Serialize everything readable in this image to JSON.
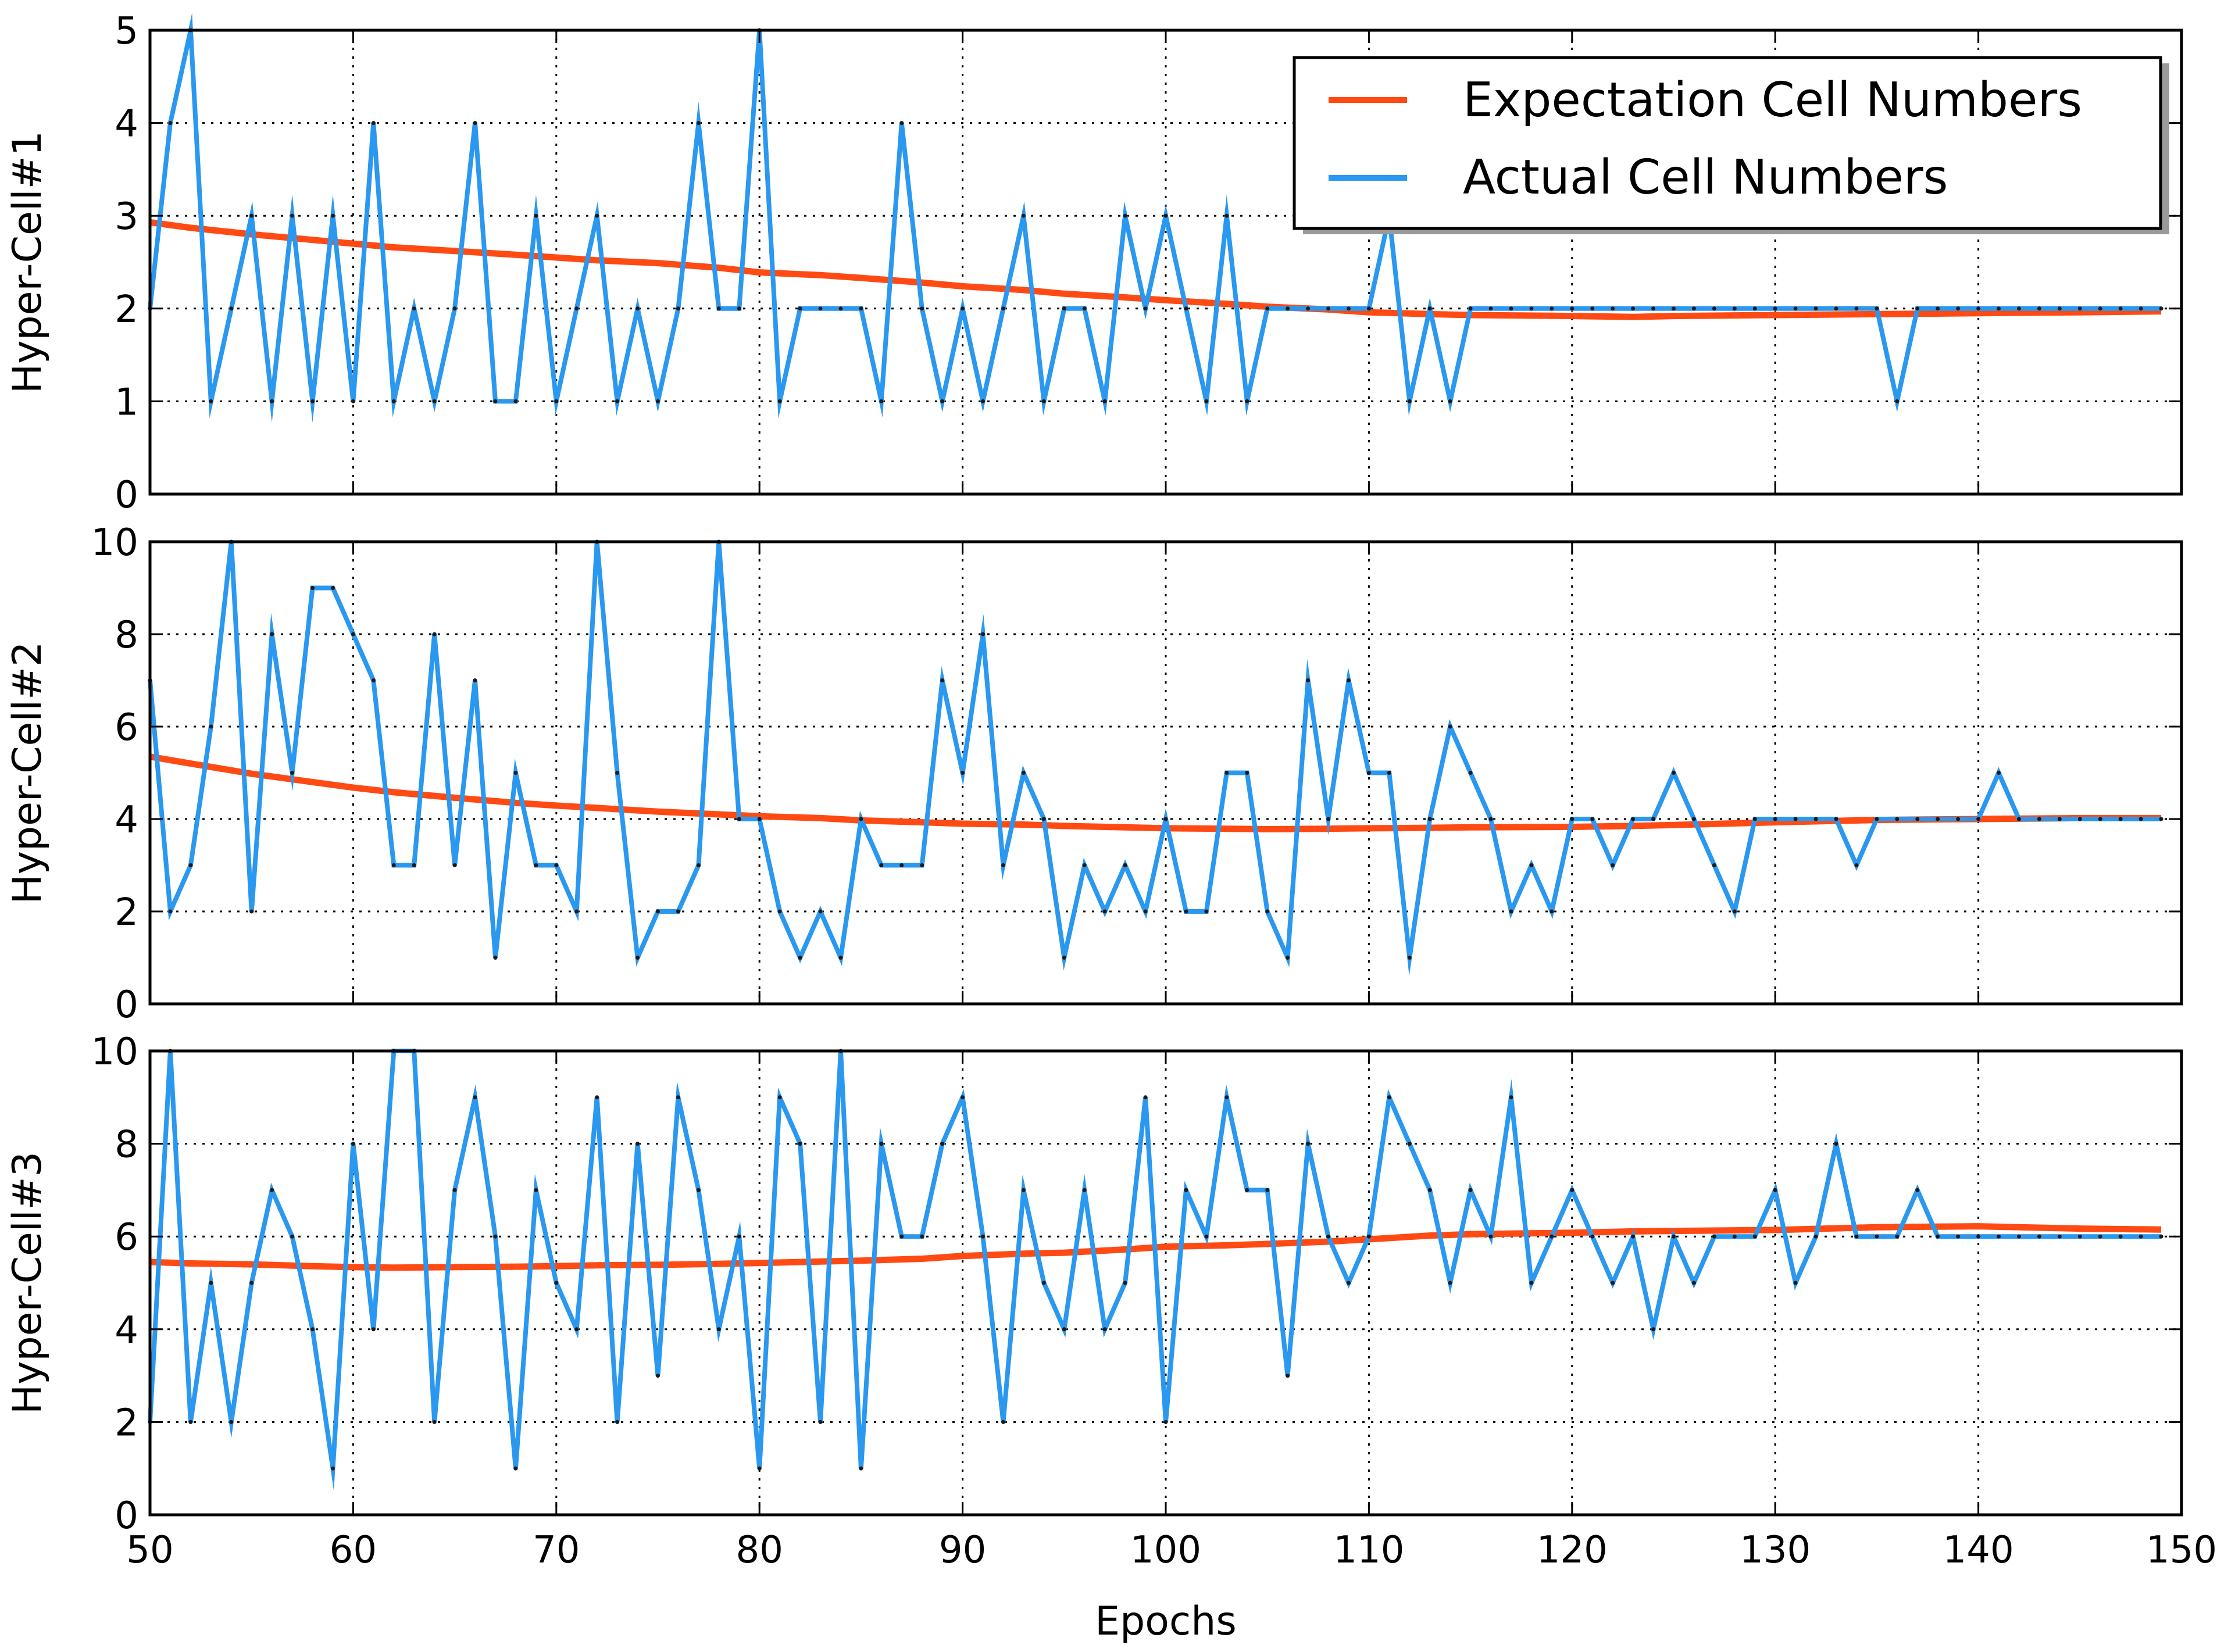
{
  "chart_data": {
    "type": "line",
    "xlabel": "Epochs",
    "xlim": [
      50,
      150
    ],
    "xticks": [
      50,
      60,
      70,
      80,
      90,
      100,
      110,
      120,
      130,
      140,
      150
    ],
    "grid": true,
    "legend": {
      "placement": "top-right of first panel",
      "entries": [
        "Expectation Cell Numbers",
        "Actual Cell Numbers"
      ]
    },
    "colors": {
      "expectation": "#ff4a13",
      "actual": "#2b98f0"
    },
    "panels": [
      {
        "ylabel": "Hyper-Cell#1",
        "ylim": [
          0,
          5
        ],
        "yticks": [
          0,
          1,
          2,
          3,
          4,
          5
        ],
        "series": [
          {
            "name": "Expectation Cell Numbers",
            "x": [
              50,
              52,
              55,
              58,
              60,
              62,
              65,
              68,
              70,
              72,
              75,
              78,
              80,
              83,
              85,
              88,
              90,
              93,
              95,
              98,
              100,
              103,
              105,
              108,
              110,
              113,
              115,
              120,
              123,
              125,
              130,
              135,
              140,
              145,
              149
            ],
            "y": [
              2.93,
              2.87,
              2.8,
              2.74,
              2.7,
              2.66,
              2.62,
              2.58,
              2.55,
              2.52,
              2.49,
              2.44,
              2.39,
              2.36,
              2.33,
              2.28,
              2.24,
              2.2,
              2.16,
              2.12,
              2.09,
              2.05,
              2.02,
              1.99,
              1.96,
              1.94,
              1.93,
              1.92,
              1.91,
              1.92,
              1.93,
              1.94,
              1.95,
              1.96,
              1.97
            ]
          },
          {
            "name": "Actual Cell Numbers",
            "x": [
              50,
              51,
              52,
              53,
              54,
              55,
              56,
              57,
              58,
              59,
              60,
              61,
              62,
              63,
              64,
              65,
              66,
              67,
              68,
              69,
              70,
              71,
              72,
              73,
              74,
              75,
              76,
              77,
              78,
              79,
              80,
              81,
              82,
              83,
              84,
              85,
              86,
              87,
              88,
              89,
              90,
              91,
              92,
              93,
              94,
              95,
              96,
              97,
              98,
              99,
              100,
              101,
              102,
              103,
              104,
              105,
              106,
              107,
              108,
              109,
              110,
              111,
              112,
              113,
              114,
              115,
              116,
              117,
              118,
              119,
              120,
              121,
              122,
              123,
              124,
              125,
              126,
              127,
              128,
              129,
              130,
              131,
              132,
              133,
              134,
              135,
              136,
              137,
              138,
              139,
              140,
              141,
              142,
              143,
              144,
              145,
              146,
              147,
              148,
              149
            ],
            "y": [
              2,
              4,
              5,
              1,
              2,
              3,
              1,
              3,
              1,
              3,
              1,
              4,
              1,
              2,
              1,
              2,
              4,
              1,
              1,
              3,
              1,
              2,
              3,
              1,
              2,
              1,
              2,
              4,
              2,
              2,
              5,
              1,
              2,
              2,
              2,
              2,
              1,
              4,
              2,
              1,
              2,
              1,
              2,
              3,
              1,
              2,
              2,
              1,
              3,
              2,
              3,
              2,
              1,
              3,
              1,
              2,
              2,
              2,
              2,
              2,
              2,
              3,
              1,
              2,
              1,
              2,
              2,
              2,
              2,
              2,
              2,
              2,
              2,
              2,
              2,
              2,
              2,
              2,
              2,
              2,
              2,
              2,
              2,
              2,
              2,
              2,
              1,
              2,
              2,
              2,
              2,
              2,
              2,
              2,
              2,
              2,
              2,
              2,
              2,
              2
            ]
          }
        ]
      },
      {
        "ylabel": "Hyper-Cell#2",
        "ylim": [
          0,
          10
        ],
        "yticks": [
          0,
          2,
          4,
          6,
          8,
          10
        ],
        "series": [
          {
            "name": "Expectation Cell Numbers",
            "x": [
              50,
              52,
              55,
              58,
              60,
              62,
              65,
              68,
              70,
              72,
              75,
              78,
              80,
              83,
              85,
              88,
              90,
              93,
              95,
              98,
              100,
              103,
              105,
              108,
              110,
              113,
              115,
              120,
              123,
              125,
              130,
              135,
              140,
              145,
              149
            ],
            "y": [
              5.35,
              5.2,
              4.98,
              4.8,
              4.68,
              4.58,
              4.46,
              4.35,
              4.29,
              4.24,
              4.16,
              4.1,
              4.06,
              4.02,
              3.97,
              3.93,
              3.9,
              3.88,
              3.85,
              3.82,
              3.8,
              3.79,
              3.78,
              3.79,
              3.8,
              3.81,
              3.82,
              3.83,
              3.85,
              3.87,
              3.93,
              3.98,
              4.0,
              4.02,
              4.02
            ]
          },
          {
            "name": "Actual Cell Numbers",
            "x": [
              50,
              51,
              52,
              53,
              54,
              55,
              56,
              57,
              58,
              59,
              60,
              61,
              62,
              63,
              64,
              65,
              66,
              67,
              68,
              69,
              70,
              71,
              72,
              73,
              74,
              75,
              76,
              77,
              78,
              79,
              80,
              81,
              82,
              83,
              84,
              85,
              86,
              87,
              88,
              89,
              90,
              91,
              92,
              93,
              94,
              95,
              96,
              97,
              98,
              99,
              100,
              101,
              102,
              103,
              104,
              105,
              106,
              107,
              108,
              109,
              110,
              111,
              112,
              113,
              114,
              115,
              116,
              117,
              118,
              119,
              120,
              121,
              122,
              123,
              124,
              125,
              126,
              127,
              128,
              129,
              130,
              131,
              132,
              133,
              134,
              135,
              136,
              137,
              138,
              139,
              140,
              141,
              142,
              143,
              144,
              145,
              146,
              147,
              148,
              149
            ],
            "y": [
              7,
              2,
              3,
              6,
              10,
              2,
              8,
              5,
              9,
              9,
              8,
              7,
              3,
              3,
              8,
              3,
              7,
              1,
              5,
              3,
              3,
              2,
              10,
              5,
              1,
              2,
              2,
              3,
              10,
              4,
              4,
              2,
              1,
              2,
              1,
              4,
              3,
              3,
              3,
              7,
              5,
              8,
              3,
              5,
              4,
              1,
              3,
              2,
              3,
              2,
              4,
              2,
              2,
              5,
              5,
              2,
              1,
              7,
              4,
              7,
              5,
              5,
              1,
              4,
              6,
              5,
              4,
              2,
              3,
              2,
              4,
              4,
              3,
              4,
              4,
              5,
              4,
              3,
              2,
              4,
              4,
              4,
              4,
              4,
              3,
              4,
              4,
              4,
              4,
              4,
              4,
              5,
              4,
              4,
              4,
              4,
              4,
              4,
              4,
              4
            ]
          }
        ]
      },
      {
        "ylabel": "Hyper-Cell#3",
        "ylim": [
          0,
          10
        ],
        "yticks": [
          0,
          2,
          4,
          6,
          8,
          10
        ],
        "series": [
          {
            "name": "Expectation Cell Numbers",
            "x": [
              50,
              52,
              55,
              58,
              60,
              62,
              65,
              68,
              70,
              72,
              75,
              78,
              80,
              83,
              85,
              88,
              90,
              93,
              95,
              98,
              100,
              103,
              105,
              108,
              110,
              113,
              115,
              120,
              123,
              125,
              130,
              135,
              140,
              145,
              149
            ],
            "y": [
              5.45,
              5.42,
              5.4,
              5.36,
              5.34,
              5.33,
              5.34,
              5.35,
              5.36,
              5.38,
              5.39,
              5.41,
              5.43,
              5.46,
              5.48,
              5.52,
              5.58,
              5.63,
              5.65,
              5.72,
              5.78,
              5.81,
              5.84,
              5.89,
              5.94,
              6.02,
              6.05,
              6.08,
              6.11,
              6.12,
              6.14,
              6.2,
              6.22,
              6.17,
              6.15
            ]
          },
          {
            "name": "Actual Cell Numbers",
            "x": [
              50,
              51,
              52,
              53,
              54,
              55,
              56,
              57,
              58,
              59,
              60,
              61,
              62,
              63,
              64,
              65,
              66,
              67,
              68,
              69,
              70,
              71,
              72,
              73,
              74,
              75,
              76,
              77,
              78,
              79,
              80,
              81,
              82,
              83,
              84,
              85,
              86,
              87,
              88,
              89,
              90,
              91,
              92,
              93,
              94,
              95,
              96,
              97,
              98,
              99,
              100,
              101,
              102,
              103,
              104,
              105,
              106,
              107,
              108,
              109,
              110,
              111,
              112,
              113,
              114,
              115,
              116,
              117,
              118,
              119,
              120,
              121,
              122,
              123,
              124,
              125,
              126,
              127,
              128,
              129,
              130,
              131,
              132,
              133,
              134,
              135,
              136,
              137,
              138,
              139,
              140,
              141,
              142,
              143,
              144,
              145,
              146,
              147,
              148,
              149
            ],
            "y": [
              2,
              10,
              2,
              5,
              2,
              5,
              7,
              6,
              4,
              1,
              8,
              4,
              10,
              10,
              2,
              7,
              9,
              6,
              1,
              7,
              5,
              4,
              9,
              2,
              8,
              3,
              9,
              7,
              4,
              6,
              1,
              9,
              8,
              2,
              10,
              1,
              8,
              6,
              6,
              8,
              9,
              6,
              2,
              7,
              5,
              4,
              7,
              4,
              5,
              9,
              2,
              7,
              6,
              9,
              7,
              7,
              3,
              8,
              6,
              5,
              6,
              9,
              8,
              7,
              5,
              7,
              6,
              9,
              5,
              6,
              7,
              6,
              5,
              6,
              4,
              6,
              5,
              6,
              6,
              6,
              7,
              5,
              6,
              8,
              6,
              6,
              6,
              7,
              6,
              6,
              6,
              6,
              6,
              6,
              6,
              6,
              6,
              6,
              6,
              6
            ]
          }
        ]
      }
    ]
  }
}
